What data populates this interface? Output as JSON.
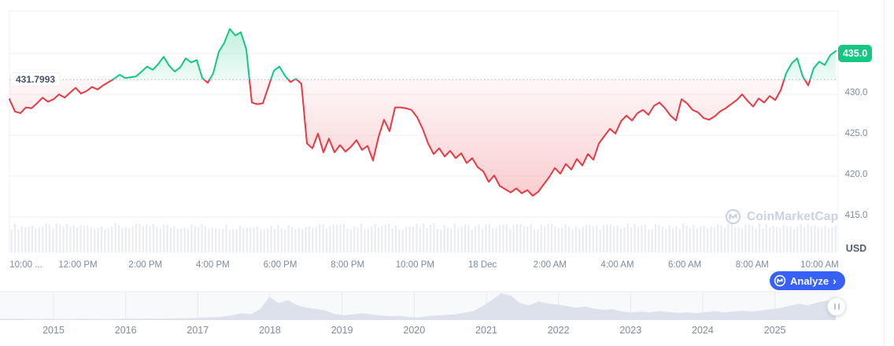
{
  "chart": {
    "baseline_label": "431.7993",
    "price_badge": "435.0",
    "unit_label": "USD",
    "watermark_label": "CoinMarketCap",
    "analyze_button": {
      "label": "Analyze",
      "chevron": "›"
    }
  },
  "chart_data": {
    "type": "area",
    "title": "24-hour price chart with baseline comparison",
    "unit": "USD",
    "baseline": 431.7993,
    "current_price": 435.0,
    "ylim": [
      414,
      440.2
    ],
    "y_ticks": [
      435.0,
      430.0,
      425.0,
      420.0,
      415.0
    ],
    "x_tick_labels": [
      "10:00 ...",
      "12:00 PM",
      "2:00 PM",
      "4:00 PM",
      "6:00 PM",
      "8:00 PM",
      "10:00 PM",
      "18 Dec",
      "2:00 AM",
      "4:00 AM",
      "6:00 AM",
      "8:00 AM",
      "10:00 AM"
    ],
    "colors": {
      "up": "#16C784",
      "down": "#EA3943",
      "accent": "#3861FB",
      "volume": "#EAECF2",
      "navigator_fill": "#DCE1EB"
    },
    "legend": "none",
    "grid": "horizontal",
    "series": [
      {
        "name": "price",
        "values": [
          429.4,
          427.9,
          427.7,
          428.4,
          428.3,
          428.9,
          429.6,
          429.1,
          429.4,
          430.0,
          429.6,
          430.2,
          430.8,
          430.1,
          430.4,
          430.9,
          430.6,
          431.1,
          431.5,
          431.9,
          432.4,
          432.0,
          432.1,
          432.2,
          432.8,
          433.4,
          433.0,
          433.7,
          434.6,
          433.5,
          432.8,
          433.3,
          434.4,
          433.9,
          434.2,
          432.0,
          431.4,
          432.6,
          435.2,
          436.3,
          438.0,
          437.2,
          437.6,
          435.5,
          429.0,
          428.8,
          428.9,
          430.9,
          432.9,
          433.4,
          432.3,
          431.5,
          431.9,
          431.3,
          424.0,
          423.4,
          425.2,
          422.9,
          424.6,
          422.9,
          423.8,
          423.0,
          423.6,
          424.4,
          423.2,
          423.7,
          421.9,
          424.8,
          426.9,
          425.5,
          428.4,
          428.4,
          428.3,
          428.1,
          427.2,
          425.8,
          424.0,
          422.7,
          423.4,
          422.4,
          423.1,
          422.2,
          422.8,
          421.6,
          422.2,
          421.1,
          420.6,
          419.3,
          420.1,
          418.8,
          418.4,
          418.0,
          418.5,
          417.9,
          418.3,
          417.6,
          418.1,
          419.0,
          419.9,
          421.0,
          420.3,
          421.5,
          420.8,
          422.1,
          421.3,
          422.7,
          422.0,
          424.0,
          424.9,
          425.8,
          425.2,
          426.7,
          427.4,
          426.8,
          427.7,
          428.1,
          427.5,
          428.6,
          429.0,
          428.3,
          427.4,
          426.8,
          429.4,
          428.9,
          428.1,
          427.8,
          427.1,
          426.9,
          427.3,
          427.9,
          428.3,
          428.8,
          429.3,
          430.0,
          429.2,
          428.5,
          429.5,
          429.0,
          429.8,
          429.3,
          430.5,
          432.6,
          433.8,
          434.4,
          432.2,
          431.1,
          433.2,
          434.0,
          433.6,
          434.8,
          435.3
        ]
      }
    ],
    "navigator": {
      "year_labels": [
        "2015",
        "2016",
        "2017",
        "2018",
        "2019",
        "2020",
        "2021",
        "2022",
        "2023",
        "2024",
        "2025"
      ],
      "values_normalized": [
        0.045,
        0.04,
        0.05,
        0.04,
        0.035,
        0.045,
        0.04,
        0.035,
        0.04,
        0.045,
        0.04,
        0.035,
        0.04,
        0.045,
        0.05,
        0.045,
        0.05,
        0.055,
        0.05,
        0.06,
        0.065,
        0.07,
        0.085,
        0.1,
        0.12,
        0.17,
        0.24,
        0.2,
        0.38,
        0.82,
        0.6,
        0.7,
        0.52,
        0.44,
        0.4,
        0.34,
        0.22,
        0.17,
        0.2,
        0.24,
        0.2,
        0.16,
        0.14,
        0.15,
        0.11,
        0.09,
        0.14,
        0.16,
        0.18,
        0.2,
        0.26,
        0.32,
        0.5,
        0.72,
        0.95,
        0.86,
        0.6,
        0.52,
        0.66,
        0.58,
        0.55,
        0.5,
        0.44,
        0.48,
        0.4,
        0.36,
        0.38,
        0.3,
        0.27,
        0.3,
        0.27,
        0.31,
        0.28,
        0.25,
        0.27,
        0.24,
        0.28,
        0.31,
        0.27,
        0.3,
        0.33,
        0.3,
        0.34,
        0.38,
        0.42,
        0.5,
        0.58,
        0.52,
        0.62,
        0.68,
        0.72
      ]
    }
  }
}
